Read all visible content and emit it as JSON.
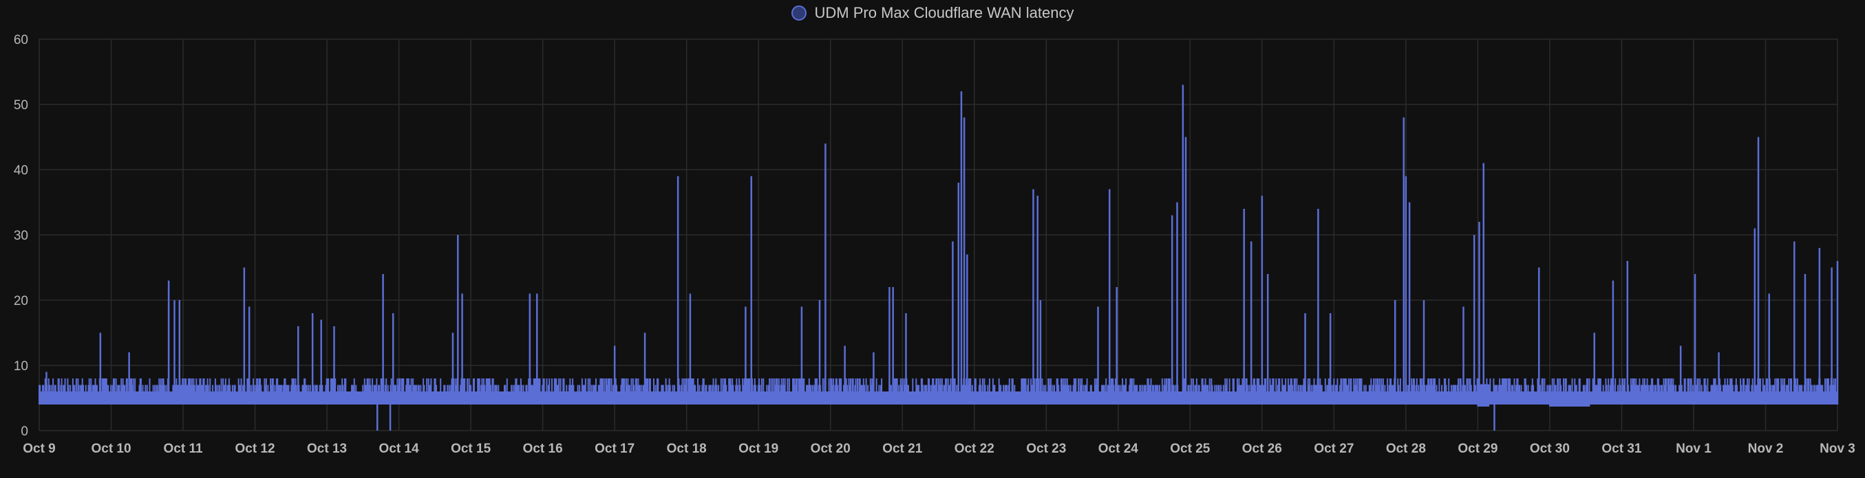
{
  "legend": {
    "label": "UDM Pro Max Cloudflare WAN latency"
  },
  "colors": {
    "background": "#111111",
    "grid": "#2c2c2c",
    "series": "#5b6ed6",
    "text": "#b8b8b8"
  },
  "chart_data": {
    "type": "line",
    "title": "",
    "xlabel": "",
    "ylabel": "",
    "ylim": [
      0,
      60
    ],
    "yticks": [
      0,
      10,
      20,
      30,
      40,
      50,
      60
    ],
    "xlim": [
      0,
      25
    ],
    "xticks": [
      "Oct 9",
      "Oct 10",
      "Oct 11",
      "Oct 12",
      "Oct 13",
      "Oct 14",
      "Oct 15",
      "Oct 16",
      "Oct 17",
      "Oct 18",
      "Oct 19",
      "Oct 20",
      "Oct 21",
      "Oct 22",
      "Oct 23",
      "Oct 24",
      "Oct 25",
      "Oct 26",
      "Oct 27",
      "Oct 28",
      "Oct 29",
      "Oct 30",
      "Oct 31",
      "Nov 1",
      "Nov 2",
      "Nov 3"
    ],
    "grid": true,
    "legend_position": "top-center",
    "baseline_latency": 4,
    "typical_latency": 6,
    "series": [
      {
        "name": "UDM Pro Max Cloudflare WAN latency",
        "spikes": [
          {
            "x": 0.1,
            "y": 9
          },
          {
            "x": 0.85,
            "y": 15
          },
          {
            "x": 1.25,
            "y": 12
          },
          {
            "x": 1.8,
            "y": 23
          },
          {
            "x": 1.88,
            "y": 20
          },
          {
            "x": 1.95,
            "y": 20
          },
          {
            "x": 2.85,
            "y": 25
          },
          {
            "x": 2.92,
            "y": 19
          },
          {
            "x": 3.6,
            "y": 16
          },
          {
            "x": 3.8,
            "y": 18
          },
          {
            "x": 3.92,
            "y": 17
          },
          {
            "x": 4.1,
            "y": 16
          },
          {
            "x": 4.78,
            "y": 24
          },
          {
            "x": 4.92,
            "y": 18
          },
          {
            "x": 5.82,
            "y": 30
          },
          {
            "x": 5.88,
            "y": 21
          },
          {
            "x": 5.75,
            "y": 15
          },
          {
            "x": 6.82,
            "y": 21
          },
          {
            "x": 6.92,
            "y": 21
          },
          {
            "x": 8.0,
            "y": 13
          },
          {
            "x": 8.42,
            "y": 15
          },
          {
            "x": 8.88,
            "y": 39
          },
          {
            "x": 9.05,
            "y": 21
          },
          {
            "x": 9.9,
            "y": 39
          },
          {
            "x": 9.82,
            "y": 19
          },
          {
            "x": 10.6,
            "y": 19
          },
          {
            "x": 10.85,
            "y": 20
          },
          {
            "x": 10.93,
            "y": 44
          },
          {
            "x": 11.2,
            "y": 13
          },
          {
            "x": 11.6,
            "y": 12
          },
          {
            "x": 11.82,
            "y": 22
          },
          {
            "x": 11.87,
            "y": 22
          },
          {
            "x": 12.05,
            "y": 18
          },
          {
            "x": 12.7,
            "y": 29
          },
          {
            "x": 12.78,
            "y": 38
          },
          {
            "x": 12.82,
            "y": 52
          },
          {
            "x": 12.86,
            "y": 48
          },
          {
            "x": 12.9,
            "y": 27
          },
          {
            "x": 13.82,
            "y": 37
          },
          {
            "x": 13.88,
            "y": 36
          },
          {
            "x": 13.92,
            "y": 20
          },
          {
            "x": 14.72,
            "y": 19
          },
          {
            "x": 14.88,
            "y": 37
          },
          {
            "x": 14.98,
            "y": 22
          },
          {
            "x": 15.75,
            "y": 33
          },
          {
            "x": 15.82,
            "y": 35
          },
          {
            "x": 15.9,
            "y": 53
          },
          {
            "x": 15.94,
            "y": 45
          },
          {
            "x": 16.75,
            "y": 34
          },
          {
            "x": 16.85,
            "y": 29
          },
          {
            "x": 17.0,
            "y": 36
          },
          {
            "x": 17.08,
            "y": 24
          },
          {
            "x": 17.6,
            "y": 18
          },
          {
            "x": 17.78,
            "y": 34
          },
          {
            "x": 17.95,
            "y": 18
          },
          {
            "x": 18.85,
            "y": 20
          },
          {
            "x": 18.97,
            "y": 48
          },
          {
            "x": 19.0,
            "y": 39
          },
          {
            "x": 19.05,
            "y": 35
          },
          {
            "x": 19.25,
            "y": 20
          },
          {
            "x": 19.8,
            "y": 19
          },
          {
            "x": 19.95,
            "y": 30
          },
          {
            "x": 20.02,
            "y": 32
          },
          {
            "x": 20.08,
            "y": 41
          },
          {
            "x": 20.85,
            "y": 25
          },
          {
            "x": 21.62,
            "y": 15
          },
          {
            "x": 21.88,
            "y": 23
          },
          {
            "x": 22.08,
            "y": 26
          },
          {
            "x": 22.82,
            "y": 13
          },
          {
            "x": 23.02,
            "y": 24
          },
          {
            "x": 23.35,
            "y": 12
          },
          {
            "x": 23.85,
            "y": 31
          },
          {
            "x": 23.9,
            "y": 45
          },
          {
            "x": 24.05,
            "y": 21
          },
          {
            "x": 24.4,
            "y": 29
          },
          {
            "x": 24.55,
            "y": 24
          },
          {
            "x": 24.75,
            "y": 28
          },
          {
            "x": 24.92,
            "y": 25
          },
          {
            "x": 25.0,
            "y": 26
          }
        ],
        "dips": [
          {
            "x": 4.7,
            "y": 0
          },
          {
            "x": 4.88,
            "y": 0
          },
          {
            "x": 20.23,
            "y": 0
          }
        ],
        "flat_segments": [
          {
            "x0": 20.0,
            "x1": 20.15,
            "y": 7
          },
          {
            "x0": 21.0,
            "x1": 21.55,
            "y": 4
          }
        ]
      }
    ]
  }
}
